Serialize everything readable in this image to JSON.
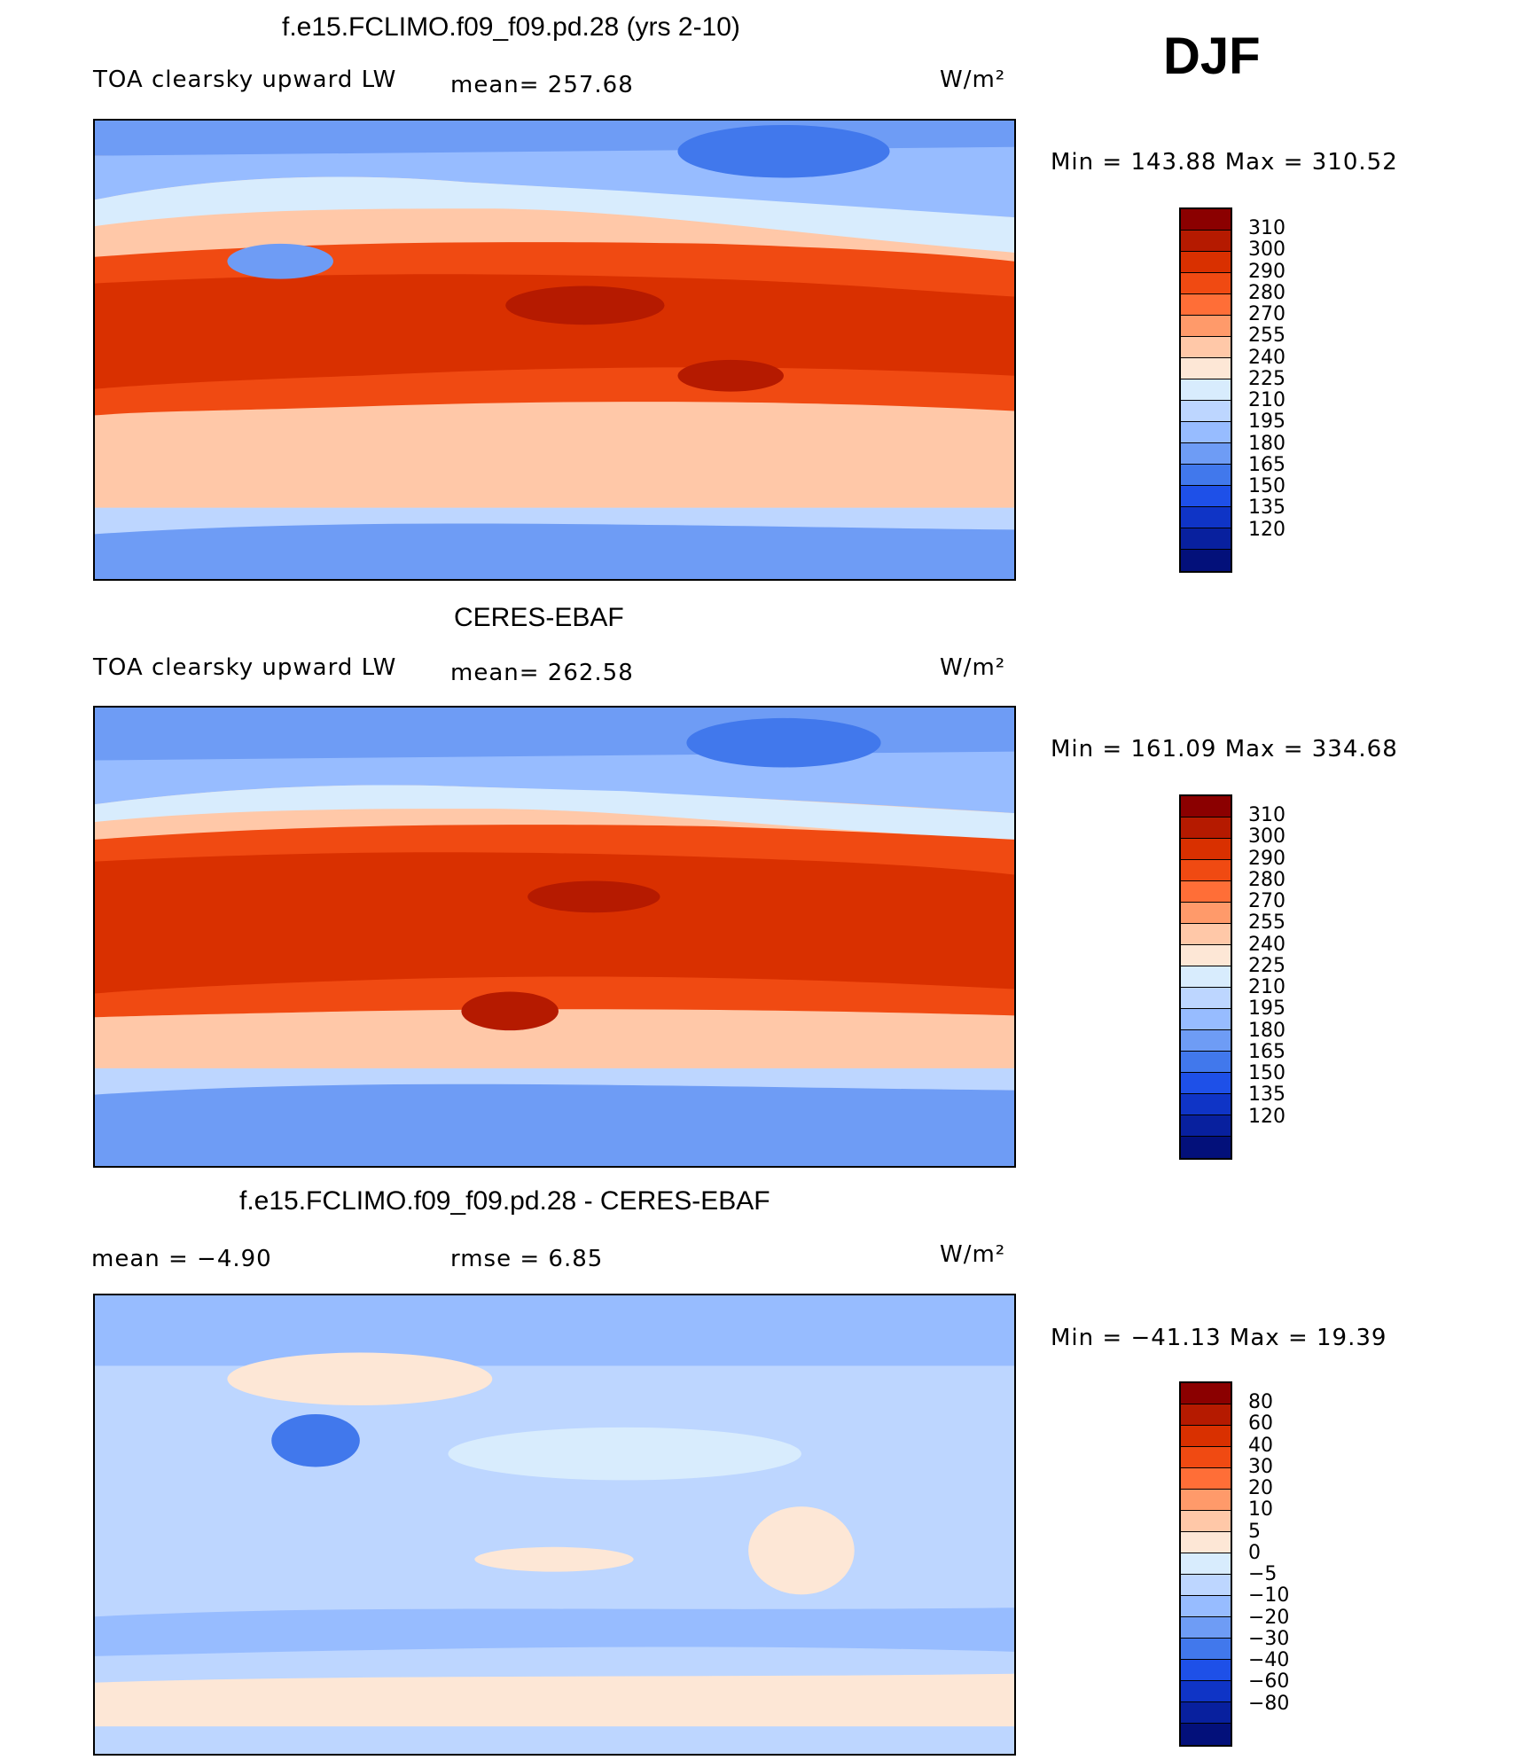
{
  "season": "DJF",
  "panels": [
    {
      "title": "f.e15.FCLIMO.f09_f09.pd.28 (yrs 2-10)",
      "left_label": "TOA clearsky upward LW",
      "middle_label": "mean=  257.68",
      "units": "W/m²",
      "minmax": "Min  =  143.88  Max  =  310.52",
      "kind": "absolute"
    },
    {
      "title": "CERES-EBAF",
      "left_label": "TOA clearsky upward LW",
      "middle_label": "mean=  262.58",
      "units": "W/m²",
      "minmax": "Min  =  161.09  Max  =  334.68",
      "kind": "absolute"
    },
    {
      "title": "f.e15.FCLIMO.f09_f09.pd.28 - CERES-EBAF",
      "left_label": "mean  =    −4.90",
      "middle_label": "rmse  =     6.85",
      "units": "W/m²",
      "minmax": "Min  =  −41.13  Max  =    19.39",
      "kind": "difference"
    }
  ],
  "colorbar_abs": {
    "colors": [
      "#8b0000",
      "#b51a00",
      "#d93000",
      "#f04a12",
      "#ff6e37",
      "#ff9a6a",
      "#ffc8a8",
      "#fde7d6",
      "#d8ecfd",
      "#bdd6ff",
      "#97bcff",
      "#6e9cf5",
      "#4178ec",
      "#1e50e8",
      "#0f34c6",
      "#08209e",
      "#03107a"
    ],
    "labels": [
      "310",
      "300",
      "290",
      "280",
      "270",
      "255",
      "240",
      "225",
      "210",
      "195",
      "180",
      "165",
      "150",
      "135",
      "120"
    ]
  },
  "colorbar_diff": {
    "colors": [
      "#8b0000",
      "#b51a00",
      "#d93000",
      "#f04a12",
      "#ff6e37",
      "#ff9a6a",
      "#ffc8a8",
      "#fde7d6",
      "#d8ecfd",
      "#bdd6ff",
      "#97bcff",
      "#6e9cf5",
      "#4178ec",
      "#1e50e8",
      "#0f34c6",
      "#08209e",
      "#03107a"
    ],
    "labels": [
      "80",
      "60",
      "40",
      "30",
      "20",
      "10",
      "5",
      "0",
      "−5",
      "−10",
      "−20",
      "−30",
      "−40",
      "−60",
      "−80"
    ]
  }
}
